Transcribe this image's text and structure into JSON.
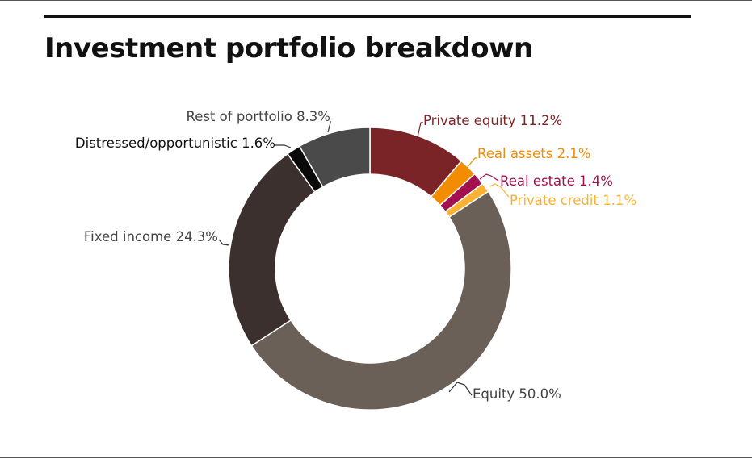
{
  "title": "Investment portfolio breakdown",
  "chart_data": {
    "type": "pie",
    "donut": true,
    "title": "Investment portfolio breakdown",
    "slices": [
      {
        "label": "Private equity 11.2%",
        "value": 11.2,
        "color": "#7b2427",
        "label_color": "#7b2427"
      },
      {
        "label": "Real assets 2.1%",
        "value": 2.1,
        "color": "#f28c00",
        "label_color": "#f28c00"
      },
      {
        "label": "Real estate 1.4%",
        "value": 1.4,
        "color": "#a3104f",
        "label_color": "#a3104f"
      },
      {
        "label": "Private credit 1.1%",
        "value": 1.1,
        "color": "#f9b233",
        "label_color": "#f9b233"
      },
      {
        "label": "Equity 50.0%",
        "value": 50.0,
        "color": "#6b6058",
        "label_color": "#444444"
      },
      {
        "label": "Fixed income 24.3%",
        "value": 24.3,
        "color": "#3b302d",
        "label_color": "#444444"
      },
      {
        "label": "Distressed/opportunistic 1.6%",
        "value": 1.6,
        "color": "#0a0a0a",
        "label_color": "#111111"
      },
      {
        "label": "Rest of portfolio 8.3%",
        "value": 8.3,
        "color": "#4a4a4a",
        "label_color": "#444444"
      }
    ]
  }
}
